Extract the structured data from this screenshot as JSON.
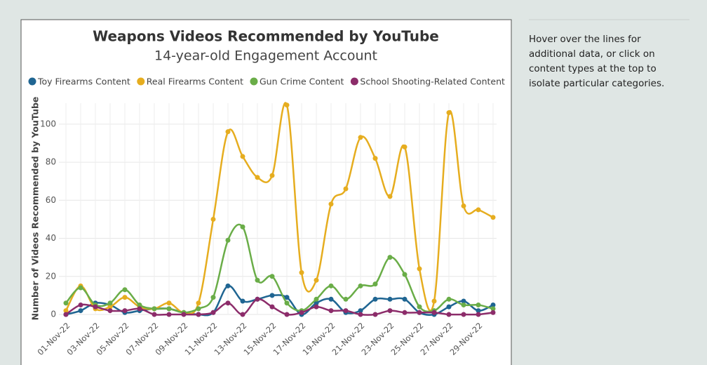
{
  "chart_data": {
    "type": "line",
    "title": "Weapons Videos Recommended by YouTube",
    "subtitle": "14-year-old Engagement Account",
    "y_label": "Number of Videos Recommended by YouTube",
    "categories": [
      "01-Nov-22",
      null,
      "03-Nov-22",
      null,
      "05-Nov-22",
      null,
      "07-Nov-22",
      null,
      "09-Nov-22",
      null,
      "11-Nov-22",
      null,
      "13-Nov-22",
      null,
      "15-Nov-22",
      null,
      "17-Nov-22",
      null,
      "19-Nov-22",
      null,
      "21-Nov-22",
      null,
      "23-Nov-22",
      null,
      "25-Nov-22",
      null,
      "27-Nov-22",
      null,
      "29-Nov-22",
      null
    ],
    "series": [
      {
        "name": "Toy Firearms Content",
        "color": "#1f6592",
        "values": [
          0,
          2,
          6,
          5,
          1,
          2,
          3,
          3,
          1,
          0,
          1,
          15,
          7,
          8,
          10,
          9,
          0,
          6,
          8,
          1,
          2,
          8,
          8,
          8,
          1,
          0,
          4,
          7,
          2,
          5
        ]
      },
      {
        "name": "Real Firearms Content",
        "color": "#e6ad1f",
        "values": [
          2,
          15,
          3,
          4,
          9,
          4,
          3,
          6,
          1,
          6,
          50,
          96,
          83,
          72,
          73,
          110,
          22,
          18,
          58,
          66,
          93,
          82,
          62,
          88,
          24,
          7,
          106,
          57,
          55,
          51
        ]
      },
      {
        "name": "Gun Crime Content",
        "color": "#6aad48",
        "values": [
          6,
          14,
          5,
          6,
          13,
          5,
          3,
          3,
          1,
          3,
          9,
          39,
          46,
          18,
          20,
          6,
          2,
          8,
          15,
          8,
          15,
          16,
          30,
          21,
          4,
          2,
          8,
          5,
          5,
          3
        ]
      },
      {
        "name": "School Shooting-Related Content",
        "color": "#8c2c6a",
        "values": [
          0,
          5,
          4,
          2,
          2,
          3,
          0,
          0,
          0,
          0,
          1,
          6,
          0,
          8,
          4,
          0,
          1,
          4,
          2,
          2,
          0,
          0,
          2,
          1,
          1,
          1,
          0,
          0,
          0,
          1
        ]
      }
    ],
    "ylim": [
      0,
      111
    ],
    "yticks": [
      0,
      20,
      40,
      60,
      80,
      100
    ],
    "grid": true
  },
  "side_note": [
    "Hover over the lines for",
    "additional data, or click on",
    "content types at the top to",
    "isolate particular categories."
  ]
}
